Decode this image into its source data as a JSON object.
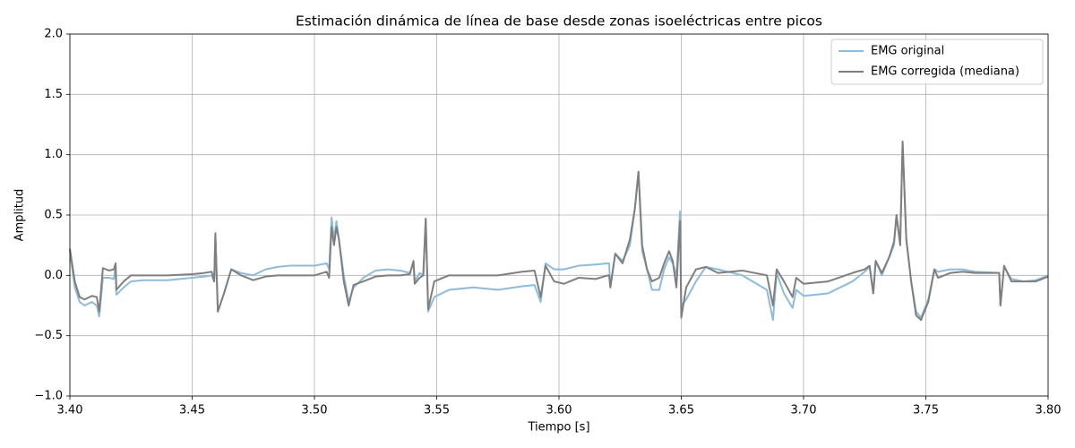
{
  "chart_data": {
    "type": "line",
    "title": "Estimación dinámica de línea de base desde zonas isoeléctricas entre picos",
    "x_label": "Tiempo [s]",
    "y_label": "Amplitud",
    "xlim": [
      3.4,
      3.8
    ],
    "xticks": [
      {
        "value": 3.4,
        "label": "3.40"
      },
      3.45,
      {
        "value": 3.5,
        "label": "3.50"
      },
      3.55,
      {
        "value": 3.6,
        "label": "3.60"
      },
      3.65,
      {
        "value": 3.7,
        "label": "3.70"
      },
      3.75,
      {
        "value": 3.8,
        "label": "3.80"
      }
    ],
    "ylim": [
      -1,
      2
    ],
    "yticks": [
      {
        "value": -1,
        "label": "−1.0"
      },
      {
        "value": -0.5,
        "label": "−0.5"
      },
      {
        "value": 0,
        "label": "0.0"
      },
      0.5,
      {
        "value": 1,
        "label": "1.0"
      },
      1.5,
      {
        "value": 2,
        "label": "2.0"
      }
    ],
    "grid": true,
    "legend": "upper-right",
    "x": [
      3.4,
      3.402,
      3.404,
      3.406,
      3.409,
      3.411,
      3.412,
      3.4135,
      3.416,
      3.418,
      3.4187,
      3.419,
      3.422,
      3.425,
      3.43,
      3.44,
      3.45,
      3.455,
      3.458,
      3.459,
      3.4595,
      3.4605,
      3.463,
      3.466,
      3.47,
      3.475,
      3.48,
      3.485,
      3.49,
      3.5,
      3.505,
      3.506,
      3.507,
      3.508,
      3.509,
      3.51,
      3.512,
      3.514,
      3.516,
      3.52,
      3.525,
      3.53,
      3.535,
      3.539,
      3.5405,
      3.541,
      3.543,
      3.5445,
      3.5455,
      3.5465,
      3.549,
      3.555,
      3.565,
      3.575,
      3.585,
      3.59,
      3.5925,
      3.5945,
      3.598,
      3.602,
      3.608,
      3.615,
      3.62,
      3.6205,
      3.621,
      3.623,
      3.626,
      3.629,
      3.631,
      3.6325,
      3.634,
      3.636,
      3.638,
      3.641,
      3.643,
      3.645,
      3.6465,
      3.648,
      3.6495,
      3.65,
      3.652,
      3.656,
      3.66,
      3.665,
      3.675,
      3.685,
      3.6875,
      3.689,
      3.692,
      3.6955,
      3.697,
      3.7,
      3.71,
      3.72,
      3.725,
      3.727,
      3.7285,
      3.7295,
      3.732,
      3.735,
      3.737,
      3.738,
      3.7395,
      3.7405,
      3.742,
      3.744,
      3.746,
      3.748,
      3.751,
      3.7535,
      3.755,
      3.76,
      3.765,
      3.77,
      3.78,
      3.7805,
      3.782,
      3.785,
      3.79,
      3.795,
      3.8
    ],
    "series": [
      {
        "name": "EMG original",
        "color": "#8fbbd9",
        "values": [
          0.2,
          -0.1,
          -0.22,
          -0.25,
          -0.22,
          -0.25,
          -0.34,
          -0.02,
          -0.02,
          -0.03,
          0.08,
          -0.16,
          -0.1,
          -0.05,
          -0.04,
          -0.04,
          -0.02,
          -0.01,
          0.0,
          -0.05,
          0.33,
          -0.3,
          -0.15,
          0.05,
          0.02,
          0.0,
          0.05,
          0.07,
          0.08,
          0.08,
          0.1,
          0.05,
          0.48,
          0.3,
          0.45,
          0.3,
          0.0,
          -0.22,
          -0.1,
          -0.02,
          0.04,
          0.05,
          0.04,
          0.02,
          0.1,
          -0.05,
          0.02,
          0.0,
          0.47,
          -0.3,
          -0.18,
          -0.12,
          -0.1,
          -0.12,
          -0.09,
          -0.08,
          -0.22,
          0.1,
          0.05,
          0.05,
          0.08,
          0.09,
          0.1,
          0.1,
          -0.1,
          0.18,
          0.12,
          0.25,
          0.55,
          0.85,
          0.2,
          0.05,
          -0.12,
          -0.12,
          0.05,
          0.15,
          0.1,
          0.0,
          0.53,
          -0.25,
          -0.2,
          -0.05,
          0.07,
          0.05,
          0.0,
          -0.12,
          -0.37,
          0.02,
          -0.15,
          -0.27,
          -0.12,
          -0.17,
          -0.15,
          -0.05,
          0.03,
          0.07,
          -0.15,
          0.12,
          0.0,
          0.15,
          0.25,
          0.5,
          0.25,
          1.1,
          0.3,
          -0.05,
          -0.3,
          -0.35,
          -0.2,
          0.05,
          0.03,
          0.05,
          0.05,
          0.03,
          0.02,
          -0.25,
          0.07,
          -0.03,
          -0.05,
          -0.04,
          0.0
        ]
      },
      {
        "name": "EMG corregida (mediana)",
        "color": "#7f7f7f",
        "values": [
          0.22,
          -0.05,
          -0.18,
          -0.2,
          -0.17,
          -0.18,
          -0.3,
          0.06,
          0.04,
          0.05,
          0.1,
          -0.12,
          -0.05,
          0.0,
          0.0,
          0.0,
          0.01,
          0.02,
          0.03,
          -0.05,
          0.35,
          -0.3,
          -0.15,
          0.05,
          0.0,
          -0.04,
          -0.01,
          0.0,
          0.0,
          0.0,
          0.03,
          -0.02,
          0.4,
          0.25,
          0.4,
          0.3,
          -0.05,
          -0.25,
          -0.08,
          -0.05,
          -0.01,
          0.0,
          0.0,
          0.01,
          0.12,
          -0.07,
          -0.02,
          0.0,
          0.47,
          -0.28,
          -0.05,
          0.0,
          0.0,
          0.0,
          0.03,
          0.04,
          -0.18,
          0.08,
          -0.05,
          -0.07,
          -0.02,
          -0.03,
          0.0,
          0.0,
          -0.1,
          0.18,
          0.1,
          0.3,
          0.55,
          0.86,
          0.25,
          0.05,
          -0.05,
          -0.02,
          0.1,
          0.2,
          0.12,
          -0.1,
          0.45,
          -0.35,
          -0.1,
          0.05,
          0.07,
          0.02,
          0.04,
          0.0,
          -0.25,
          0.05,
          -0.05,
          -0.18,
          -0.02,
          -0.07,
          -0.05,
          0.02,
          0.05,
          0.08,
          -0.15,
          0.12,
          0.02,
          0.15,
          0.28,
          0.5,
          0.25,
          1.11,
          0.3,
          -0.05,
          -0.33,
          -0.37,
          -0.22,
          0.05,
          -0.02,
          0.02,
          0.03,
          0.02,
          0.02,
          -0.25,
          0.08,
          -0.05,
          -0.05,
          -0.05,
          -0.01
        ]
      }
    ]
  }
}
